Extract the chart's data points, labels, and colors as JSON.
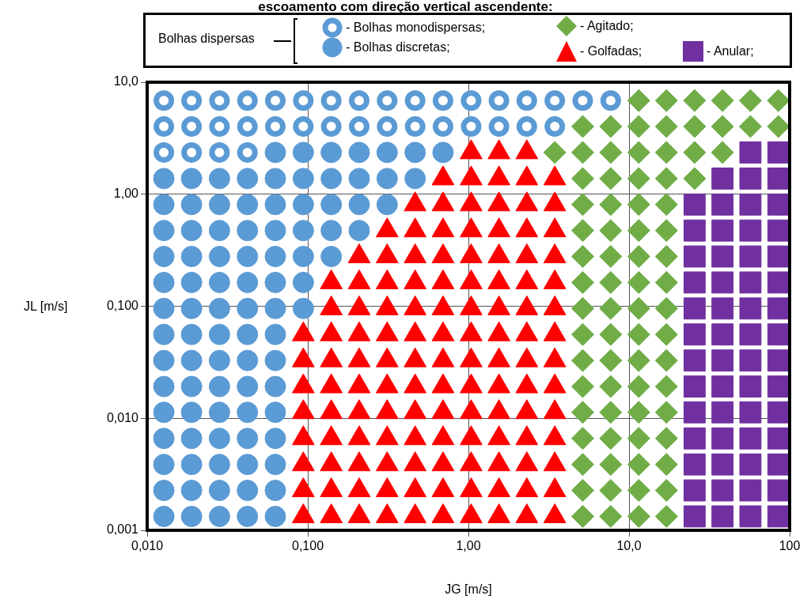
{
  "chart_data": {
    "type": "scatter",
    "title": "escoamento com direção vertical ascendente:",
    "xlabel": "JG [m/s]",
    "ylabel": "JL [m/s]",
    "legend_title": "Bolhas dispersas",
    "legend": "top",
    "log": "xy",
    "grid": true,
    "xlim": [
      0.01,
      100
    ],
    "xticks": [
      {
        "value": 0.01,
        "label": "0,010"
      },
      {
        "value": 0.1,
        "label": "0,100"
      },
      {
        "value": 1,
        "label": "1,00"
      },
      {
        "value": 10,
        "label": "10,0"
      },
      {
        "value": 100,
        "label": "100"
      }
    ],
    "ylim": [
      0.001,
      10
    ],
    "yticks": [
      {
        "value": 0.001,
        "label": "0,001"
      },
      {
        "value": 0.01,
        "label": "0,010"
      },
      {
        "value": 0.1,
        "label": "0,100"
      },
      {
        "value": 1,
        "label": "1,00"
      },
      {
        "value": 10,
        "label": "10,0"
      }
    ],
    "series": [
      {
        "name": "- Bolhas monodispersas;",
        "color": "#5b9bd5",
        "marker": "circle",
        "x": [
          0.0127,
          0.0189,
          0.0282,
          0.0421,
          0.0628,
          0.0938,
          0.14,
          0.209,
          0.312,
          0.466,
          0.695,
          1.04,
          1.55,
          2.31,
          3.45,
          5.15,
          7.69,
          0.0127,
          0.0189,
          0.0282,
          0.0421,
          0.0628,
          0.0938,
          0.14,
          0.209,
          0.312,
          0.466,
          0.695,
          1.04,
          1.55,
          2.31,
          3.45,
          0.0127,
          0.0189,
          0.0282,
          0.0421
        ],
        "values": [
          6.85,
          6.85,
          6.85,
          6.85,
          6.85,
          6.85,
          6.85,
          6.85,
          6.85,
          6.85,
          6.85,
          6.85,
          6.85,
          6.85,
          6.85,
          6.85,
          6.85,
          4.02,
          4.02,
          4.02,
          4.02,
          4.02,
          4.02,
          4.02,
          4.02,
          4.02,
          4.02,
          4.02,
          4.02,
          4.02,
          4.02,
          4.02,
          2.36,
          2.36,
          2.36,
          2.36
        ]
      },
      {
        "name": "- Bolhas discretas;",
        "color": "#5b9bd5",
        "marker": "circle",
        "x": [
          0.0628,
          0.0938,
          0.14,
          0.209,
          0.312,
          0.466,
          0.695,
          0.0127,
          0.0189,
          0.0282,
          0.0421,
          0.0628,
          0.0938,
          0.14,
          0.209,
          0.312,
          0.466,
          0.0127,
          0.0189,
          0.0282,
          0.0421,
          0.0628,
          0.0938,
          0.14,
          0.209,
          0.312,
          0.0127,
          0.0189,
          0.0282,
          0.0421,
          0.0628,
          0.0938,
          0.14,
          0.209,
          0.0127,
          0.0189,
          0.0282,
          0.0421,
          0.0628,
          0.0938,
          0.14,
          0.0127,
          0.0189,
          0.0282,
          0.0421,
          0.0628,
          0.0938,
          0.0127,
          0.0189,
          0.0282,
          0.0421,
          0.0628,
          0.0938,
          0.0127,
          0.0189,
          0.0282,
          0.0421,
          0.0628,
          0.0127,
          0.0189,
          0.0282,
          0.0421,
          0.0628,
          0.0127,
          0.0189,
          0.0282,
          0.0421,
          0.0628,
          0.0127,
          0.0189,
          0.0282,
          0.0421,
          0.0628,
          0.0127,
          0.0189,
          0.0282,
          0.0421,
          0.0628,
          0.0127,
          0.0189,
          0.0282,
          0.0421,
          0.0628,
          0.0127,
          0.0189,
          0.0282,
          0.0421,
          0.0628,
          0.0127,
          0.0189,
          0.0282,
          0.0421,
          0.0628
        ],
        "values": [
          2.36,
          2.36,
          2.36,
          2.36,
          2.36,
          2.36,
          2.36,
          1.38,
          1.38,
          1.38,
          1.38,
          1.38,
          1.38,
          1.38,
          1.38,
          1.38,
          1.38,
          0.809,
          0.809,
          0.809,
          0.809,
          0.809,
          0.809,
          0.809,
          0.809,
          0.809,
          0.474,
          0.474,
          0.474,
          0.474,
          0.474,
          0.474,
          0.474,
          0.474,
          0.278,
          0.278,
          0.278,
          0.278,
          0.278,
          0.278,
          0.278,
          0.163,
          0.163,
          0.163,
          0.163,
          0.163,
          0.163,
          0.0955,
          0.0955,
          0.0955,
          0.0955,
          0.0955,
          0.0955,
          0.056,
          0.056,
          0.056,
          0.056,
          0.056,
          0.0328,
          0.0328,
          0.0328,
          0.0328,
          0.0328,
          0.0192,
          0.0192,
          0.0192,
          0.0192,
          0.0192,
          0.0113,
          0.0113,
          0.0113,
          0.0113,
          0.0113,
          0.00661,
          0.00661,
          0.00661,
          0.00661,
          0.00661,
          0.00387,
          0.00387,
          0.00387,
          0.00387,
          0.00387,
          0.00227,
          0.00227,
          0.00227,
          0.00227,
          0.00227,
          0.00133,
          0.00133,
          0.00133,
          0.00133,
          0.00133
        ]
      },
      {
        "name": "- Agitado;",
        "color": "#70ad47",
        "marker": "diamond",
        "x": [
          11.5,
          17.1,
          25.6,
          38.2,
          57.0,
          85.1,
          5.15,
          7.69,
          11.5,
          17.1,
          25.6,
          38.2,
          57.0,
          85.1,
          3.45,
          5.15,
          7.69,
          11.5,
          17.1,
          25.6,
          38.2,
          5.15,
          7.69,
          11.5,
          17.1,
          25.6,
          5.15,
          7.69,
          11.5,
          17.1,
          5.15,
          7.69,
          11.5,
          17.1,
          5.15,
          7.69,
          11.5,
          17.1,
          5.15,
          7.69,
          11.5,
          17.1,
          5.15,
          7.69,
          11.5,
          17.1,
          5.15,
          7.69,
          11.5,
          17.1,
          5.15,
          7.69,
          11.5,
          17.1,
          5.15,
          7.69,
          11.5,
          17.1,
          5.15,
          7.69,
          11.5,
          17.1,
          5.15,
          7.69,
          11.5,
          17.1,
          5.15,
          7.69,
          11.5,
          17.1,
          5.15,
          7.69,
          11.5,
          17.1,
          5.15,
          7.69,
          11.5,
          17.1
        ],
        "values": [
          6.85,
          6.85,
          6.85,
          6.85,
          6.85,
          6.85,
          4.02,
          4.02,
          4.02,
          4.02,
          4.02,
          4.02,
          4.02,
          4.02,
          2.36,
          2.36,
          2.36,
          2.36,
          2.36,
          2.36,
          2.36,
          1.38,
          1.38,
          1.38,
          1.38,
          1.38,
          0.809,
          0.809,
          0.809,
          0.809,
          0.474,
          0.474,
          0.474,
          0.474,
          0.278,
          0.278,
          0.278,
          0.278,
          0.163,
          0.163,
          0.163,
          0.163,
          0.0955,
          0.0955,
          0.0955,
          0.0955,
          0.056,
          0.056,
          0.056,
          0.056,
          0.0328,
          0.0328,
          0.0328,
          0.0328,
          0.0192,
          0.0192,
          0.0192,
          0.0192,
          0.0113,
          0.0113,
          0.0113,
          0.0113,
          0.00661,
          0.00661,
          0.00661,
          0.00661,
          0.00387,
          0.00387,
          0.00387,
          0.00387,
          0.00227,
          0.00227,
          0.00227,
          0.00227,
          0.00133,
          0.00133,
          0.00133,
          0.00133
        ]
      },
      {
        "name": "- Golfadas;",
        "color": "#ff0000",
        "marker": "triangle",
        "x": [
          1.04,
          1.55,
          2.31,
          0.695,
          1.04,
          1.55,
          2.31,
          3.45,
          0.466,
          0.695,
          1.04,
          1.55,
          2.31,
          3.45,
          0.312,
          0.466,
          0.695,
          1.04,
          1.55,
          2.31,
          3.45,
          0.209,
          0.312,
          0.466,
          0.695,
          1.04,
          1.55,
          2.31,
          3.45,
          0.14,
          0.209,
          0.312,
          0.466,
          0.695,
          1.04,
          1.55,
          2.31,
          3.45,
          0.14,
          0.209,
          0.312,
          0.466,
          0.695,
          1.04,
          1.55,
          2.31,
          3.45,
          0.0938,
          0.14,
          0.209,
          0.312,
          0.466,
          0.695,
          1.04,
          1.55,
          2.31,
          3.45,
          0.0938,
          0.14,
          0.209,
          0.312,
          0.466,
          0.695,
          1.04,
          1.55,
          2.31,
          3.45,
          0.0938,
          0.14,
          0.209,
          0.312,
          0.466,
          0.695,
          1.04,
          1.55,
          2.31,
          3.45,
          0.0938,
          0.14,
          0.209,
          0.312,
          0.466,
          0.695,
          1.04,
          1.55,
          2.31,
          3.45,
          0.0938,
          0.14,
          0.209,
          0.312,
          0.466,
          0.695,
          1.04,
          1.55,
          2.31,
          3.45,
          0.0938,
          0.14,
          0.209,
          0.312,
          0.466,
          0.695,
          1.04,
          1.55,
          2.31,
          3.45,
          0.0938,
          0.14,
          0.209,
          0.312,
          0.466,
          0.695,
          1.04,
          1.55,
          2.31,
          3.45,
          0.0938,
          0.14,
          0.209,
          0.312,
          0.466,
          0.695,
          1.04,
          1.55,
          2.31,
          3.45
        ],
        "values": [
          2.36,
          2.36,
          2.36,
          1.38,
          1.38,
          1.38,
          1.38,
          1.38,
          0.809,
          0.809,
          0.809,
          0.809,
          0.809,
          0.809,
          0.474,
          0.474,
          0.474,
          0.474,
          0.474,
          0.474,
          0.474,
          0.278,
          0.278,
          0.278,
          0.278,
          0.278,
          0.278,
          0.278,
          0.278,
          0.163,
          0.163,
          0.163,
          0.163,
          0.163,
          0.163,
          0.163,
          0.163,
          0.163,
          0.0955,
          0.0955,
          0.0955,
          0.0955,
          0.0955,
          0.0955,
          0.0955,
          0.0955,
          0.0955,
          0.056,
          0.056,
          0.056,
          0.056,
          0.056,
          0.056,
          0.056,
          0.056,
          0.056,
          0.056,
          0.0328,
          0.0328,
          0.0328,
          0.0328,
          0.0328,
          0.0328,
          0.0328,
          0.0328,
          0.0328,
          0.0328,
          0.0192,
          0.0192,
          0.0192,
          0.0192,
          0.0192,
          0.0192,
          0.0192,
          0.0192,
          0.0192,
          0.0192,
          0.0113,
          0.0113,
          0.0113,
          0.0113,
          0.0113,
          0.0113,
          0.0113,
          0.0113,
          0.0113,
          0.0113,
          0.00661,
          0.00661,
          0.00661,
          0.00661,
          0.00661,
          0.00661,
          0.00661,
          0.00661,
          0.00661,
          0.00661,
          0.00387,
          0.00387,
          0.00387,
          0.00387,
          0.00387,
          0.00387,
          0.00387,
          0.00387,
          0.00387,
          0.00387,
          0.00227,
          0.00227,
          0.00227,
          0.00227,
          0.00227,
          0.00227,
          0.00227,
          0.00227,
          0.00227,
          0.00227,
          0.00133,
          0.00133,
          0.00133,
          0.00133,
          0.00133,
          0.00133,
          0.00133,
          0.00133,
          0.00133,
          0.00133
        ]
      },
      {
        "name": "- Anular;",
        "color": "#7030a0",
        "marker": "square",
        "x": [
          57.0,
          85.1,
          38.2,
          57.0,
          85.1,
          25.6,
          38.2,
          57.0,
          85.1,
          25.6,
          38.2,
          57.0,
          85.1,
          25.6,
          38.2,
          57.0,
          85.1,
          25.6,
          38.2,
          57.0,
          85.1,
          25.6,
          38.2,
          57.0,
          85.1,
          25.6,
          38.2,
          57.0,
          85.1,
          25.6,
          38.2,
          57.0,
          85.1,
          25.6,
          38.2,
          57.0,
          85.1,
          25.6,
          38.2,
          57.0,
          85.1,
          25.6,
          38.2,
          57.0,
          85.1,
          25.6,
          38.2,
          57.0,
          85.1,
          25.6,
          38.2,
          57.0,
          85.1,
          25.6,
          38.2,
          57.0,
          85.1
        ],
        "values": [
          2.36,
          2.36,
          1.38,
          1.38,
          1.38,
          0.809,
          0.809,
          0.809,
          0.809,
          0.474,
          0.474,
          0.474,
          0.474,
          0.278,
          0.278,
          0.278,
          0.278,
          0.163,
          0.163,
          0.163,
          0.163,
          0.0955,
          0.0955,
          0.0955,
          0.0955,
          0.056,
          0.056,
          0.056,
          0.056,
          0.0328,
          0.0328,
          0.0328,
          0.0328,
          0.0192,
          0.0192,
          0.0192,
          0.0192,
          0.0113,
          0.0113,
          0.0113,
          0.0113,
          0.00661,
          0.00661,
          0.00661,
          0.00661,
          0.00387,
          0.00387,
          0.00387,
          0.00387,
          0.00227,
          0.00227,
          0.00227,
          0.00227,
          0.00133,
          0.00133,
          0.00133,
          0.00133
        ]
      }
    ]
  }
}
